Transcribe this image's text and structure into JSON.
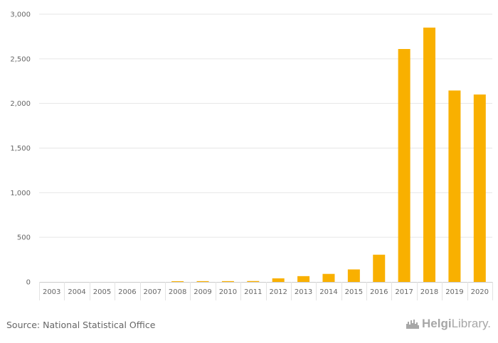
{
  "chart_data": {
    "type": "bar",
    "categories": [
      "2003",
      "2004",
      "2005",
      "2006",
      "2007",
      "2008",
      "2009",
      "2010",
      "2011",
      "2012",
      "2013",
      "2014",
      "2015",
      "2016",
      "2017",
      "2018",
      "2019",
      "2020"
    ],
    "values": [
      0,
      0,
      0,
      0,
      0,
      8,
      9,
      9,
      10,
      40,
      65,
      90,
      140,
      305,
      2610,
      2850,
      2145,
      2100
    ],
    "title": "",
    "xlabel": "",
    "ylabel": "",
    "ylim": [
      0,
      3000
    ],
    "yticks": [
      0,
      500,
      1000,
      1500,
      2000,
      2500,
      3000
    ],
    "ytick_labels": [
      "0",
      "500",
      "1,000",
      "1,500",
      "2,000",
      "2,500",
      "3,000"
    ],
    "bar_color": "#f9b000",
    "grid": true
  },
  "footer": {
    "source": "Source: National Statistical Office",
    "brand_bold": "Helgi",
    "brand_light": "Library."
  }
}
